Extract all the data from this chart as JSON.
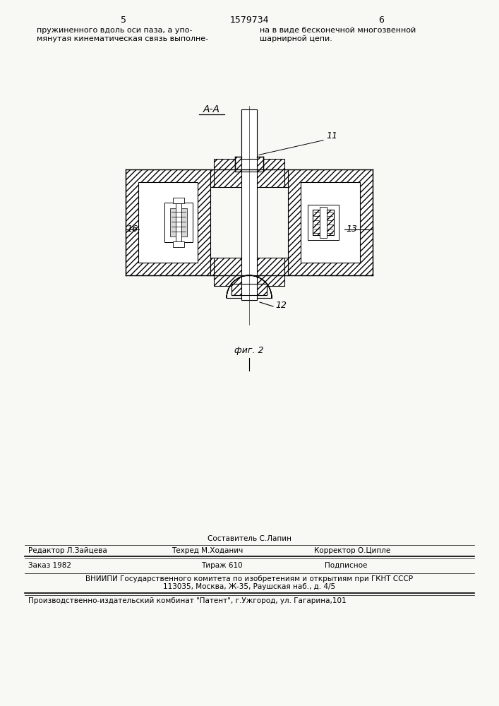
{
  "page_width": 7.07,
  "page_height": 10.0,
  "bg_color": "#f8f8f5",
  "top_left_text": "пружиненного вдоль оси паза, а упо-\nмянутая кинематическая связь выполне-",
  "top_right_text": "на в виде бесконечной многозвенной\nшарнирной цепи.",
  "page_num_left": "5",
  "page_num_right": "6",
  "patent_num": "1579734",
  "section_label": "А-А",
  "fig_label": "фиг. 2",
  "label_11": "11",
  "label_12": "12",
  "label_13": "13",
  "label_16": "16",
  "footer_composer": "Составитель С.Лапин",
  "footer_editor": "Редактор Л.Зайцева",
  "footer_techred": "Техред М.Хoданич",
  "footer_corrector": "Корректор О.Ципле",
  "footer_order": "Заказ 1982",
  "footer_tirazh": "Тираж 610",
  "footer_podpisnoe": "Подписное",
  "footer_vniipи": "ВНИИПИ Государственного комитета по изобретениям и открытиям при ГКНТ СССР",
  "footer_address": "113035, Москва, Ж-35, Раушская наб., д. 4/5",
  "footer_plant": "Производственно-издательский комбинат \"Патент\", г.Ужгород, ул. Гагарина,101"
}
